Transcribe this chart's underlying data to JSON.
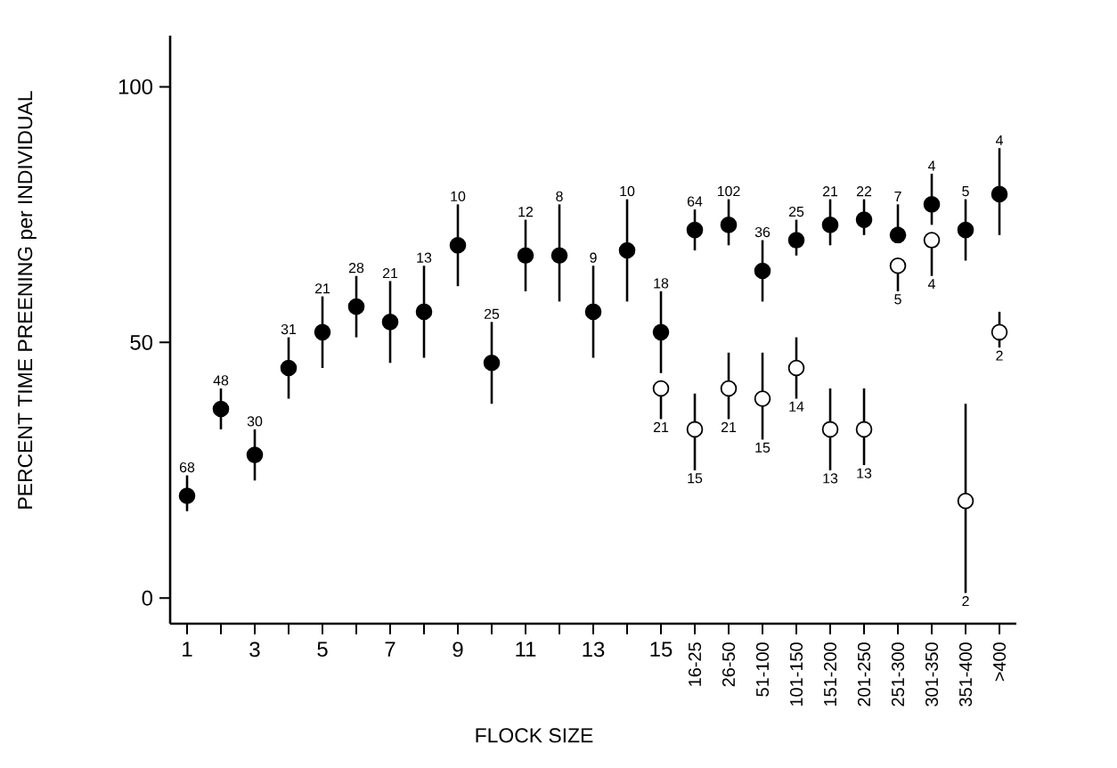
{
  "chart_data": {
    "type": "scatter",
    "xlabel": "FLOCK SIZE",
    "ylabel": "PERCENT TIME PREENING per INDIVIDUAL",
    "categories": [
      "1",
      null,
      "3",
      null,
      "5",
      null,
      "7",
      null,
      "9",
      null,
      "11",
      null,
      "13",
      null,
      "15",
      "16-25",
      "26-50",
      "51-100",
      "101-150",
      "151-200",
      "201-250",
      "251-300",
      "301-350",
      "351-400",
      ">400"
    ],
    "ylim": [
      -5,
      110
    ],
    "yticks": [
      0,
      50,
      100
    ],
    "annotations": [
      "68",
      "48",
      "30",
      "31",
      "21",
      "28",
      "21",
      "13",
      "10",
      "25",
      "12",
      "8",
      "9",
      "10",
      "18",
      "64",
      "102",
      "36",
      "25",
      "21",
      "22",
      "7",
      "4",
      "5",
      "4",
      "21",
      "15",
      "21",
      "15",
      "14",
      "13",
      "13",
      "5",
      "4",
      "2",
      "2"
    ],
    "series": [
      {
        "color": "#000000",
        "values": [
          20,
          37,
          28,
          45,
          52,
          57,
          54,
          56,
          69,
          46,
          67,
          67,
          56,
          68,
          52,
          72,
          73,
          64,
          70,
          73,
          74,
          71,
          77,
          72,
          79
        ],
        "errors": [
          [
            17,
            24
          ],
          [
            33,
            41
          ],
          [
            23,
            33
          ],
          [
            39,
            51
          ],
          [
            45,
            59
          ],
          [
            51,
            63
          ],
          [
            46,
            62
          ],
          [
            47,
            65
          ],
          [
            61,
            77
          ],
          [
            38,
            54
          ],
          [
            60,
            74
          ],
          [
            58,
            77
          ],
          [
            47,
            65
          ],
          [
            58,
            78
          ],
          [
            44,
            60
          ],
          [
            68,
            76
          ],
          [
            69,
            78
          ],
          [
            58,
            70
          ],
          [
            67,
            74
          ],
          [
            69,
            78
          ],
          [
            71,
            78
          ],
          [
            71,
            77
          ],
          [
            73,
            83
          ],
          [
            66,
            78
          ],
          [
            71,
            88
          ]
        ]
      },
      {
        "color": "#ffffff",
        "values": [
          null,
          null,
          null,
          null,
          null,
          null,
          null,
          null,
          null,
          null,
          null,
          null,
          null,
          null,
          41,
          33,
          41,
          39,
          45,
          33,
          33,
          65,
          70,
          19,
          52
        ],
        "errors": [
          null,
          null,
          null,
          null,
          null,
          null,
          null,
          null,
          null,
          null,
          null,
          null,
          null,
          null,
          [
            35,
            41
          ],
          [
            25,
            40
          ],
          [
            35,
            48
          ],
          [
            31,
            48
          ],
          [
            39,
            51
          ],
          [
            25,
            41
          ],
          [
            26,
            41
          ],
          [
            60,
            65
          ],
          [
            63,
            70
          ],
          [
            1,
            38
          ],
          [
            49,
            56
          ]
        ]
      }
    ]
  }
}
